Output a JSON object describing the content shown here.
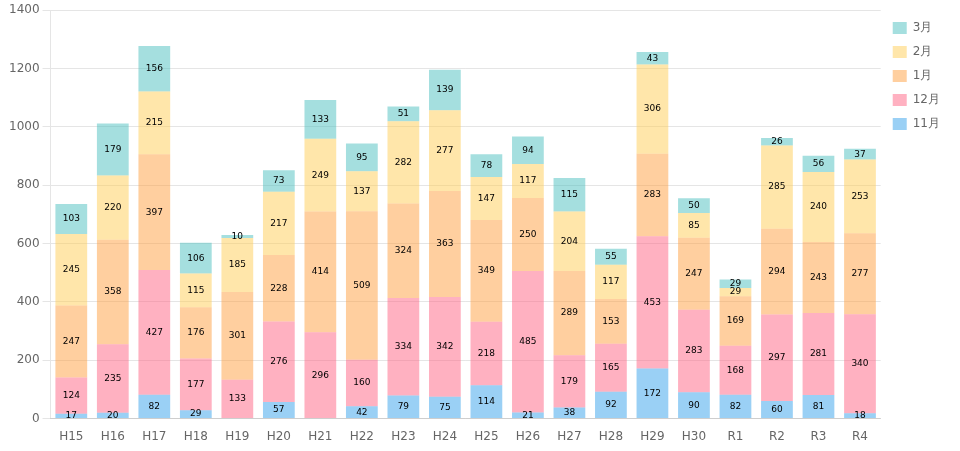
{
  "chart_data": {
    "type": "bar",
    "categories": [
      "H15",
      "H16",
      "H17",
      "H18",
      "H19",
      "H20",
      "H21",
      "H22",
      "H23",
      "H24",
      "H25",
      "H26",
      "H27",
      "H28",
      "H29",
      "H30",
      "R1",
      "R2",
      "R3",
      "R4"
    ],
    "series": [
      {
        "name": "11月",
        "values": [
          17,
          20,
          82,
          29,
          0,
          57,
          0,
          42,
          79,
          75,
          114,
          21,
          38,
          92,
          172,
          90,
          82,
          60,
          81,
          18
        ]
      },
      {
        "name": "12月",
        "values": [
          124,
          235,
          427,
          177,
          133,
          276,
          296,
          160,
          334,
          342,
          218,
          485,
          179,
          165,
          453,
          283,
          168,
          297,
          281,
          340
        ]
      },
      {
        "name": "1月",
        "values": [
          247,
          358,
          397,
          176,
          301,
          228,
          414,
          509,
          324,
          363,
          349,
          250,
          289,
          153,
          283,
          247,
          169,
          294,
          243,
          277
        ]
      },
      {
        "name": "2月",
        "values": [
          245,
          220,
          215,
          115,
          185,
          217,
          249,
          137,
          282,
          277,
          147,
          117,
          204,
          117,
          306,
          85,
          29,
          285,
          240,
          253
        ]
      },
      {
        "name": "3月",
        "values": [
          103,
          179,
          156,
          106,
          10,
          73,
          133,
          95,
          51,
          139,
          78,
          94,
          115,
          55,
          43,
          50,
          29,
          26,
          56,
          37
        ]
      }
    ],
    "stacked": true,
    "data_labels": true,
    "ylim": [
      0,
      1400
    ],
    "yticks": [
      0,
      200,
      400,
      600,
      800,
      1000,
      1200,
      1400
    ],
    "grid": true,
    "legend": "upper right"
  }
}
